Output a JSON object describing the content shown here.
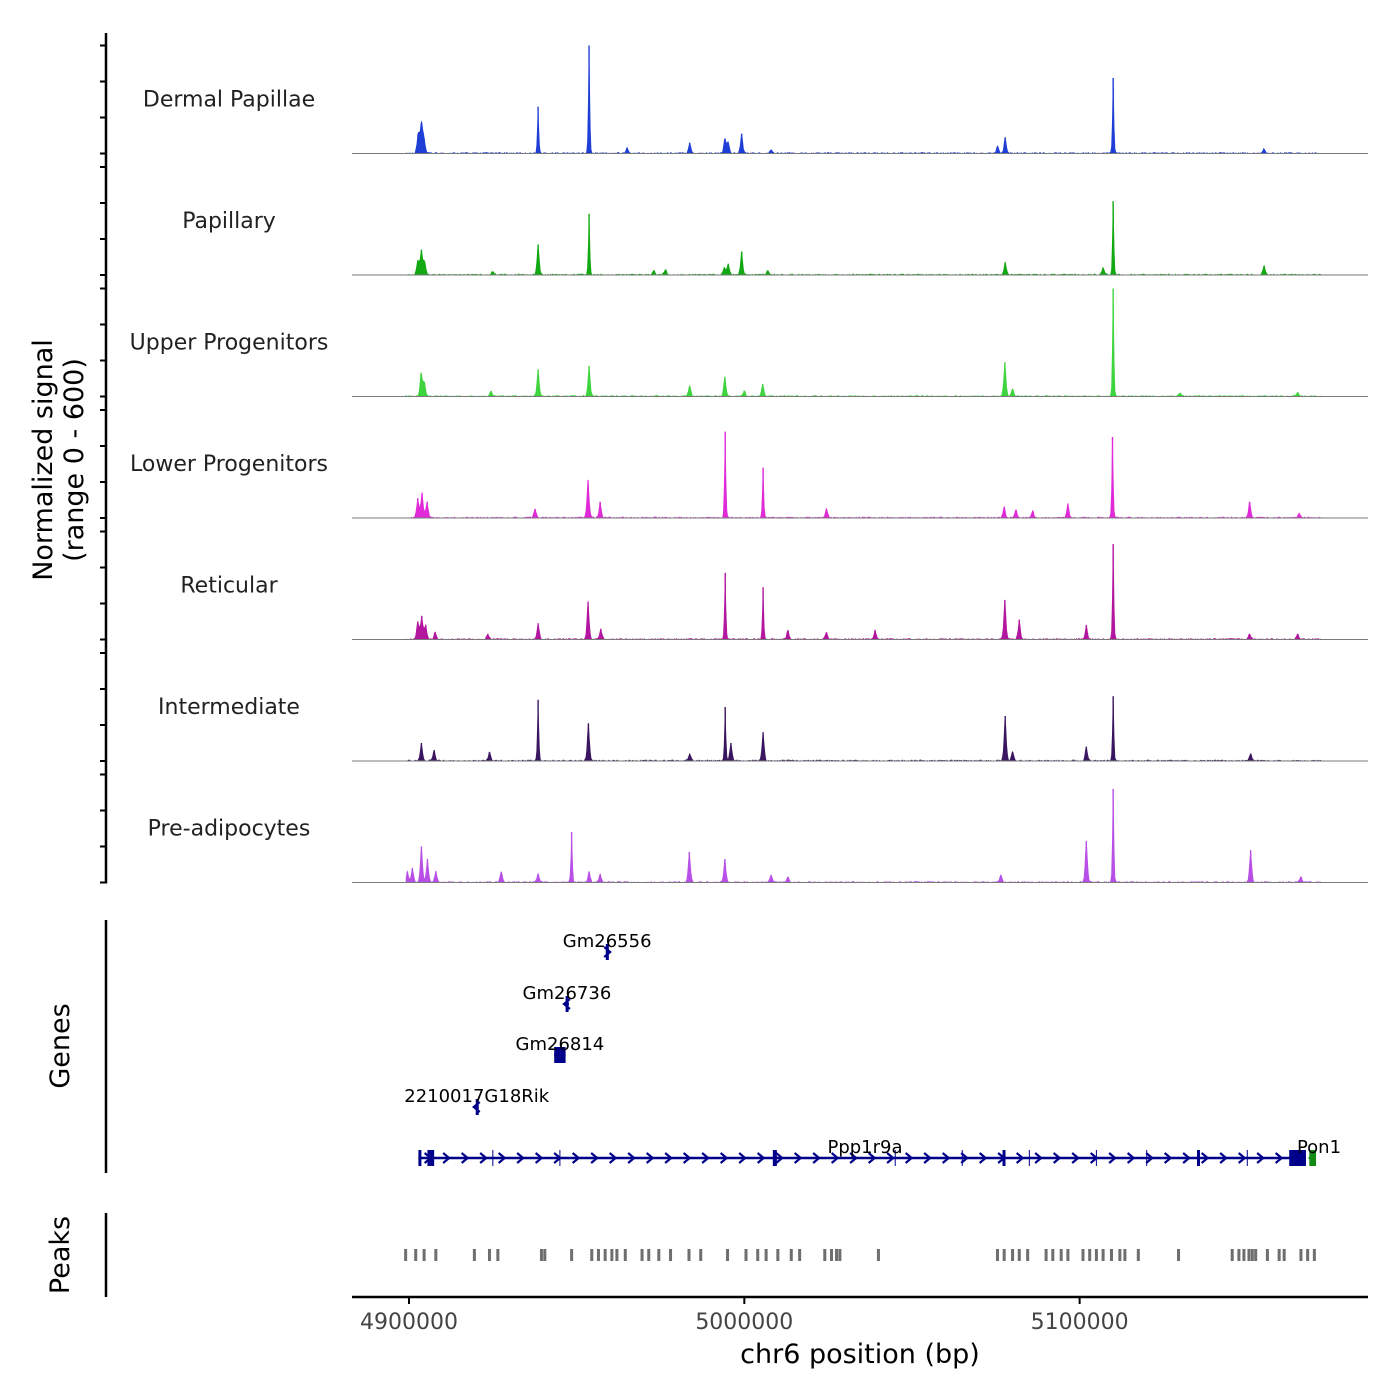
{
  "chart_data": {
    "type": "coverage-track",
    "ylabel_line1": "Normalized signal",
    "ylabel_line2": "(range 0 - 600)",
    "ylim": [
      0,
      600
    ],
    "xlabel": "chr6 position (bp)",
    "xlim": [
      4883000,
      5186000
    ],
    "x_ticks": [
      4900000,
      5000000,
      5100000
    ],
    "x_tick_labels": [
      "4900000",
      "5000000",
      "5100000"
    ],
    "tracks": [
      {
        "name": "Dermal Papillae",
        "color": "#1f3fd6",
        "peaks": [
          [
            4902700,
            110
          ],
          [
            4903700,
            170
          ],
          [
            4904500,
            80
          ],
          [
            4938500,
            260
          ],
          [
            4953700,
            600
          ],
          [
            4965000,
            30
          ],
          [
            4983700,
            60
          ],
          [
            4994200,
            80
          ],
          [
            4995200,
            60
          ],
          [
            4999200,
            110
          ],
          [
            5008000,
            20
          ],
          [
            5075500,
            40
          ],
          [
            5077800,
            90
          ],
          [
            5110000,
            420
          ],
          [
            5155000,
            25
          ]
        ]
      },
      {
        "name": "Papillary",
        "color": "#13a813",
        "peaks": [
          [
            4902600,
            80
          ],
          [
            4903700,
            140
          ],
          [
            4904700,
            70
          ],
          [
            4925000,
            20
          ],
          [
            4938500,
            170
          ],
          [
            4953700,
            340
          ],
          [
            4973000,
            25
          ],
          [
            4976500,
            30
          ],
          [
            4994000,
            40
          ],
          [
            4995200,
            60
          ],
          [
            4999200,
            130
          ],
          [
            5007000,
            25
          ],
          [
            5077800,
            70
          ],
          [
            5107000,
            40
          ],
          [
            5110000,
            410
          ],
          [
            5155000,
            50
          ]
        ]
      },
      {
        "name": "Upper Progenitors",
        "color": "#3fd43f",
        "peaks": [
          [
            4903600,
            130
          ],
          [
            4904600,
            80
          ],
          [
            4924500,
            30
          ],
          [
            4938500,
            150
          ],
          [
            4953700,
            170
          ],
          [
            4983700,
            60
          ],
          [
            4994200,
            110
          ],
          [
            5000000,
            30
          ],
          [
            5005500,
            70
          ],
          [
            5077700,
            190
          ],
          [
            5080000,
            40
          ],
          [
            5110000,
            600
          ],
          [
            5130000,
            20
          ],
          [
            5165000,
            20
          ]
        ]
      },
      {
        "name": "Lower Progenitors",
        "color": "#e02ad8",
        "peaks": [
          [
            4902600,
            110
          ],
          [
            4903900,
            140
          ],
          [
            4905400,
            90
          ],
          [
            4937600,
            50
          ],
          [
            4953400,
            210
          ],
          [
            4957000,
            90
          ],
          [
            4994300,
            480
          ],
          [
            5005600,
            280
          ],
          [
            5024500,
            50
          ],
          [
            5077500,
            60
          ],
          [
            5081000,
            45
          ],
          [
            5086000,
            40
          ],
          [
            5096500,
            80
          ],
          [
            5109800,
            450
          ],
          [
            5150700,
            90
          ],
          [
            5165500,
            25
          ]
        ]
      },
      {
        "name": "Reticular",
        "color": "#b3179f",
        "peaks": [
          [
            4902600,
            100
          ],
          [
            4903800,
            130
          ],
          [
            4905000,
            80
          ],
          [
            4907800,
            40
          ],
          [
            4923500,
            30
          ],
          [
            4938500,
            90
          ],
          [
            4953400,
            210
          ],
          [
            4957200,
            60
          ],
          [
            4994300,
            370
          ],
          [
            5005600,
            290
          ],
          [
            5013000,
            50
          ],
          [
            5024500,
            40
          ],
          [
            5039000,
            50
          ],
          [
            5077700,
            220
          ],
          [
            5082000,
            110
          ],
          [
            5102000,
            80
          ],
          [
            5110000,
            530
          ],
          [
            5150700,
            30
          ],
          [
            5165000,
            30
          ]
        ]
      },
      {
        "name": "Intermediate",
        "color": "#3b1660",
        "peaks": [
          [
            4903700,
            100
          ],
          [
            4907500,
            60
          ],
          [
            4924000,
            50
          ],
          [
            4938500,
            340
          ],
          [
            4953500,
            210
          ],
          [
            4983700,
            40
          ],
          [
            4994300,
            300
          ],
          [
            4996000,
            100
          ],
          [
            5005600,
            160
          ],
          [
            5077800,
            250
          ],
          [
            5080000,
            50
          ],
          [
            5102000,
            80
          ],
          [
            5110000,
            360
          ],
          [
            5151000,
            40
          ]
        ]
      },
      {
        "name": "Pre-adipocytes",
        "color": "#b84fe6",
        "peaks": [
          [
            4899500,
            60
          ],
          [
            4901000,
            80
          ],
          [
            4903700,
            200
          ],
          [
            4905500,
            130
          ],
          [
            4908000,
            60
          ],
          [
            4927500,
            60
          ],
          [
            4938500,
            50
          ],
          [
            4948500,
            280
          ],
          [
            4953700,
            60
          ],
          [
            4957000,
            45
          ],
          [
            4983600,
            170
          ],
          [
            4994200,
            130
          ],
          [
            5008000,
            40
          ],
          [
            5013000,
            30
          ],
          [
            5076500,
            40
          ],
          [
            5102000,
            230
          ],
          [
            5110000,
            520
          ],
          [
            5151000,
            180
          ],
          [
            5166000,
            30
          ]
        ]
      }
    ],
    "genes": {
      "title": "Genes",
      "labels": [
        "Gm26556",
        "Gm26736",
        "Gm26814",
        "2210017G18Rik",
        "Ppp1r9a",
        "Pon1"
      ],
      "items": [
        {
          "name": "Gm26556",
          "start": 4958700,
          "end": 4959500,
          "strand": "+",
          "row": 0,
          "color": "#00008b",
          "exons": [
            [
              4958700,
              4959500
            ]
          ]
        },
        {
          "name": "Gm26736",
          "start": 4946500,
          "end": 4947700,
          "strand": "-",
          "row": 1,
          "color": "#00008b",
          "exons": [
            [
              4946700,
              4947500
            ]
          ]
        },
        {
          "name": "Gm26814",
          "start": 4943300,
          "end": 4946700,
          "strand": "+",
          "row": 2,
          "color": "#00008b",
          "exons": [
            [
              4943300,
              4946700
            ]
          ]
        },
        {
          "name": "2210017G18Rik",
          "start": 4919700,
          "end": 4920700,
          "strand": "-",
          "row": 3,
          "color": "#00008b",
          "exons": [
            [
              4919900,
              4920500
            ]
          ]
        },
        {
          "name": "Ppp1r9a",
          "start": 4902800,
          "end": 5167500,
          "strand": "+",
          "row": 4,
          "color": "#00008b",
          "exons": [
            [
              4902800,
              4903400
            ],
            [
              4905500,
              4907500
            ],
            [
              5008500,
              5009700
            ],
            [
              5077000,
              5077600
            ],
            [
              5135000,
              5135600
            ],
            [
              5162500,
              5167500
            ]
          ],
          "introns_marks": [
            4925000,
            4945000,
            5045000,
            5065000,
            5085000,
            5105000,
            5120000,
            5150000
          ]
        },
        {
          "name": "Pon1",
          "start": 5168500,
          "end": 5170500,
          "strand": "-",
          "row": 4,
          "color": "#138a13",
          "exons": [
            [
              5168500,
              5170500
            ]
          ]
        }
      ]
    },
    "peaks_track": {
      "title": "Peaks",
      "color": "#6e6e6e",
      "positions": [
        4899000,
        4902000,
        4904500,
        4908000,
        4919500,
        4924000,
        4926500,
        4939500,
        4940500,
        4948500,
        4954500,
        4956500,
        4958500,
        4960500,
        4962000,
        4964500,
        4969500,
        4971500,
        4974500,
        4978000,
        4983500,
        4987000,
        4995000,
        5000500,
        5004000,
        5006500,
        5010000,
        5014000,
        5016500,
        5024000,
        5026000,
        5027500,
        5028500,
        5040000,
        5075500,
        5077500,
        5080000,
        5082000,
        5084500,
        5090000,
        5092000,
        5094500,
        5096500,
        5101000,
        5103000,
        5105000,
        5107000,
        5109500,
        5112000,
        5113500,
        5117500,
        5129500,
        5145500,
        5147500,
        5149000,
        5150500,
        5151500,
        5152500,
        5156000,
        5159500,
        5161000,
        5166000,
        5168000,
        5170000
      ]
    }
  }
}
